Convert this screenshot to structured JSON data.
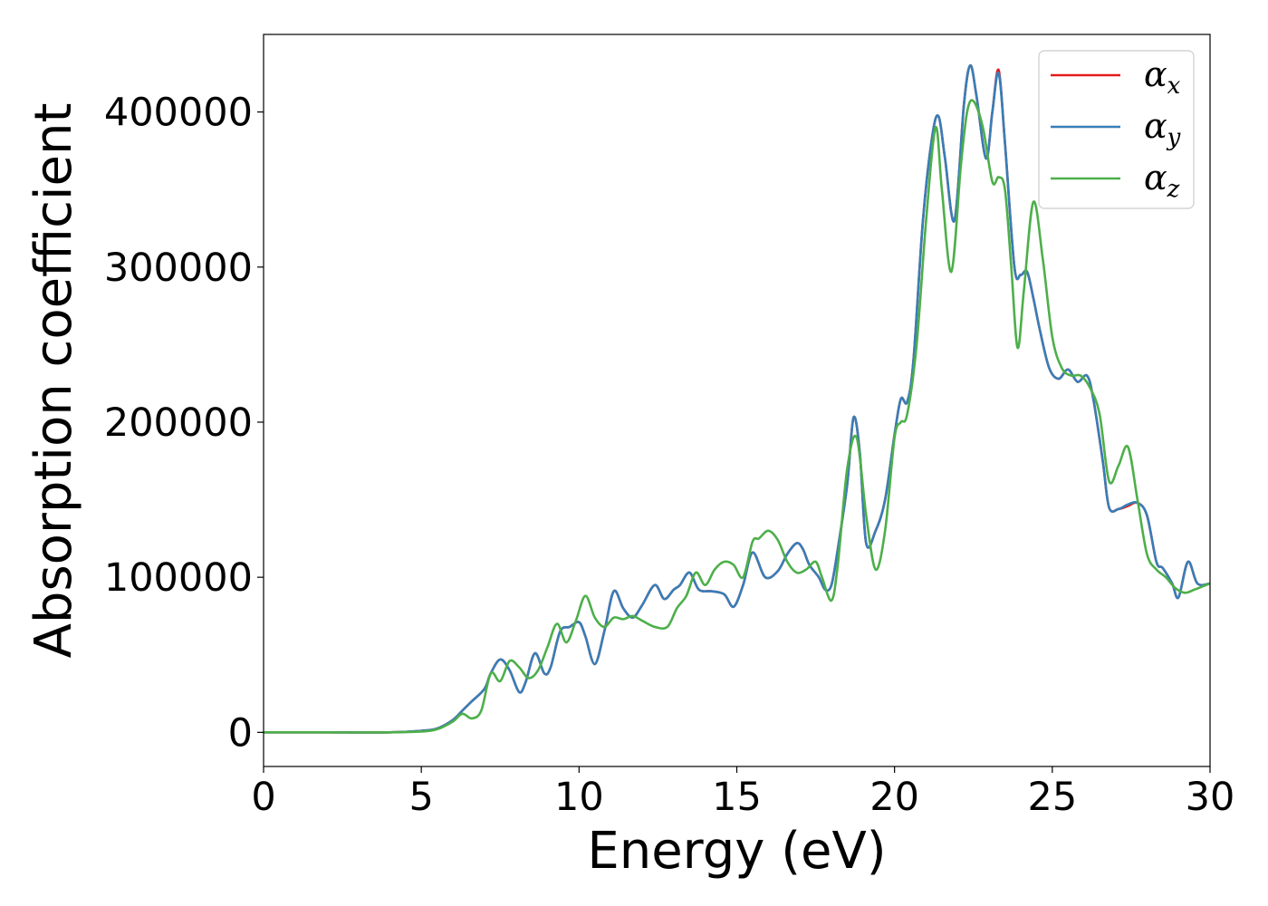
{
  "chart_data": {
    "type": "line",
    "xlabel": "Energy (eV)",
    "ylabel": "Absorption coefficient",
    "xlim": [
      0,
      30
    ],
    "ylim": [
      -22000,
      450000
    ],
    "xticks": [
      0,
      5,
      10,
      15,
      20,
      25,
      30
    ],
    "xtick_labels": [
      "0",
      "5",
      "10",
      "15",
      "20",
      "25",
      "30"
    ],
    "yticks": [
      0,
      100000,
      200000,
      300000,
      400000
    ],
    "ytick_labels": [
      "0",
      "100000",
      "200000",
      "300000",
      "400000"
    ],
    "grid": false,
    "legend_position": "top-right",
    "series": [
      {
        "name": "α_x",
        "legend_symbol": "α",
        "legend_subscript": "x",
        "color": "#e41a1c",
        "x": [
          0,
          2,
          4,
          5,
          5.5,
          6,
          6.3,
          6.6,
          7,
          7.2,
          7.5,
          7.8,
          8.1,
          8.3,
          8.6,
          8.9,
          9.1,
          9.4,
          9.7,
          10,
          10.2,
          10.5,
          10.8,
          11.1,
          11.4,
          11.7,
          12,
          12.4,
          12.7,
          13,
          13.2,
          13.5,
          13.8,
          14.2,
          14.6,
          14.9,
          15.2,
          15.5,
          15.9,
          16.3,
          16.6,
          16.9,
          17.1,
          17.3,
          17.6,
          17.8,
          18,
          18.2,
          18.5,
          18.7,
          18.9,
          19.1,
          19.4,
          19.7,
          20,
          20.2,
          20.4,
          20.6,
          20.9,
          21.2,
          21.4,
          21.6,
          21.9,
          22.2,
          22.4,
          22.6,
          22.9,
          23.1,
          23.3,
          23.5,
          23.8,
          24,
          24.2,
          24.4,
          24.6,
          24.9,
          25.2,
          25.5,
          25.8,
          26.1,
          26.3,
          26.6,
          26.8,
          27.1,
          27.4,
          27.7,
          28,
          28.3,
          28.5,
          28.8,
          29,
          29.3,
          29.6,
          30
        ],
        "y": [
          0,
          0,
          0,
          1000,
          2500,
          8000,
          14000,
          20000,
          28000,
          38000,
          47000,
          40000,
          26000,
          32000,
          51000,
          38000,
          42000,
          65000,
          68000,
          71000,
          62000,
          44000,
          65000,
          91000,
          80000,
          74000,
          82000,
          95000,
          86000,
          92000,
          95000,
          103000,
          92000,
          91000,
          89000,
          81000,
          95000,
          116000,
          100000,
          104000,
          115000,
          122000,
          118000,
          108000,
          100000,
          92000,
          95000,
          118000,
          160000,
          203000,
          180000,
          122000,
          130000,
          150000,
          192000,
          215000,
          213000,
          240000,
          330000,
          385000,
          397000,
          370000,
          330000,
          405000,
          430000,
          410000,
          370000,
          400000,
          427000,
          380000,
          300000,
          295000,
          297000,
          280000,
          260000,
          235000,
          228000,
          234000,
          226000,
          230000,
          215000,
          175000,
          145000,
          144000,
          146000,
          148000,
          140000,
          110000,
          106000,
          96000,
          87000,
          110000,
          96000,
          96000
        ]
      },
      {
        "name": "α_y",
        "legend_symbol": "α",
        "legend_subscript": "y",
        "color": "#377eb8",
        "x": [
          0,
          2,
          4,
          5,
          5.5,
          6,
          6.3,
          6.6,
          7,
          7.2,
          7.5,
          7.8,
          8.1,
          8.3,
          8.6,
          8.9,
          9.1,
          9.4,
          9.7,
          10,
          10.2,
          10.5,
          10.8,
          11.1,
          11.4,
          11.7,
          12,
          12.4,
          12.7,
          13,
          13.2,
          13.5,
          13.8,
          14.2,
          14.6,
          14.9,
          15.2,
          15.5,
          15.9,
          16.3,
          16.6,
          16.9,
          17.1,
          17.3,
          17.6,
          17.8,
          18,
          18.2,
          18.5,
          18.7,
          18.9,
          19.1,
          19.4,
          19.7,
          20,
          20.2,
          20.4,
          20.6,
          20.9,
          21.2,
          21.4,
          21.6,
          21.9,
          22.2,
          22.4,
          22.6,
          22.9,
          23.1,
          23.3,
          23.5,
          23.8,
          24,
          24.2,
          24.4,
          24.6,
          24.9,
          25.2,
          25.5,
          25.8,
          26.1,
          26.3,
          26.6,
          26.8,
          27.1,
          27.4,
          27.7,
          28,
          28.3,
          28.5,
          28.8,
          29,
          29.3,
          29.6,
          30
        ],
        "y": [
          0,
          0,
          0,
          1000,
          2500,
          8000,
          14000,
          20000,
          28000,
          38000,
          47000,
          40000,
          26000,
          32000,
          51000,
          38000,
          42000,
          65000,
          68000,
          71000,
          62000,
          44000,
          65000,
          91000,
          80000,
          74000,
          82000,
          95000,
          86000,
          92000,
          95000,
          103000,
          92000,
          91000,
          89000,
          81000,
          95000,
          116000,
          100000,
          104000,
          115000,
          122000,
          118000,
          108000,
          100000,
          92000,
          95000,
          118000,
          160000,
          203000,
          180000,
          122000,
          130000,
          150000,
          192000,
          215000,
          213000,
          240000,
          330000,
          385000,
          397000,
          370000,
          330000,
          405000,
          430000,
          410000,
          370000,
          400000,
          425000,
          380000,
          300000,
          295000,
          297000,
          280000,
          260000,
          235000,
          228000,
          234000,
          226000,
          230000,
          215000,
          175000,
          145000,
          144000,
          147000,
          148000,
          140000,
          110000,
          106000,
          96000,
          87000,
          110000,
          96000,
          96000
        ]
      },
      {
        "name": "α_z",
        "legend_symbol": "α",
        "legend_subscript": "z",
        "color": "#4daf4a",
        "x": [
          0,
          2,
          4,
          5,
          5.5,
          6,
          6.3,
          6.6,
          6.9,
          7.2,
          7.5,
          7.8,
          8.1,
          8.4,
          8.7,
          9,
          9.3,
          9.6,
          9.9,
          10.2,
          10.5,
          10.8,
          11.1,
          11.4,
          11.7,
          12,
          12.4,
          12.8,
          13.1,
          13.4,
          13.7,
          14,
          14.3,
          14.6,
          14.9,
          15.2,
          15.5,
          15.7,
          16,
          16.3,
          16.6,
          16.9,
          17.2,
          17.5,
          17.7,
          18,
          18.2,
          18.5,
          18.8,
          19.1,
          19.4,
          19.7,
          20,
          20.2,
          20.4,
          20.7,
          21,
          21.3,
          21.5,
          21.8,
          22.1,
          22.3,
          22.5,
          22.8,
          23.1,
          23.3,
          23.5,
          23.7,
          23.9,
          24.1,
          24.4,
          24.7,
          25,
          25.3,
          25.6,
          25.9,
          26.2,
          26.5,
          26.8,
          27.1,
          27.4,
          27.7,
          28,
          28.3,
          28.6,
          28.9,
          29.2,
          29.5,
          30
        ],
        "y": [
          0,
          0,
          0,
          500,
          2000,
          7000,
          12000,
          9000,
          14000,
          38000,
          33000,
          46000,
          42000,
          35000,
          40000,
          55000,
          70000,
          58000,
          72000,
          88000,
          74000,
          68000,
          74000,
          73000,
          75000,
          72000,
          68000,
          68000,
          80000,
          88000,
          103000,
          95000,
          105000,
          110000,
          108000,
          100000,
          123000,
          125000,
          130000,
          124000,
          110000,
          103000,
          105000,
          110000,
          100000,
          85000,
          108000,
          170000,
          190000,
          140000,
          105000,
          130000,
          190000,
          200000,
          205000,
          250000,
          330000,
          390000,
          350000,
          297000,
          365000,
          400000,
          407000,
          390000,
          355000,
          358000,
          350000,
          300000,
          248000,
          285000,
          342000,
          305000,
          255000,
          235000,
          230000,
          230000,
          222000,
          205000,
          162000,
          172000,
          184000,
          150000,
          115000,
          105000,
          100000,
          93000,
          90000,
          92000,
          96000
        ]
      }
    ]
  }
}
